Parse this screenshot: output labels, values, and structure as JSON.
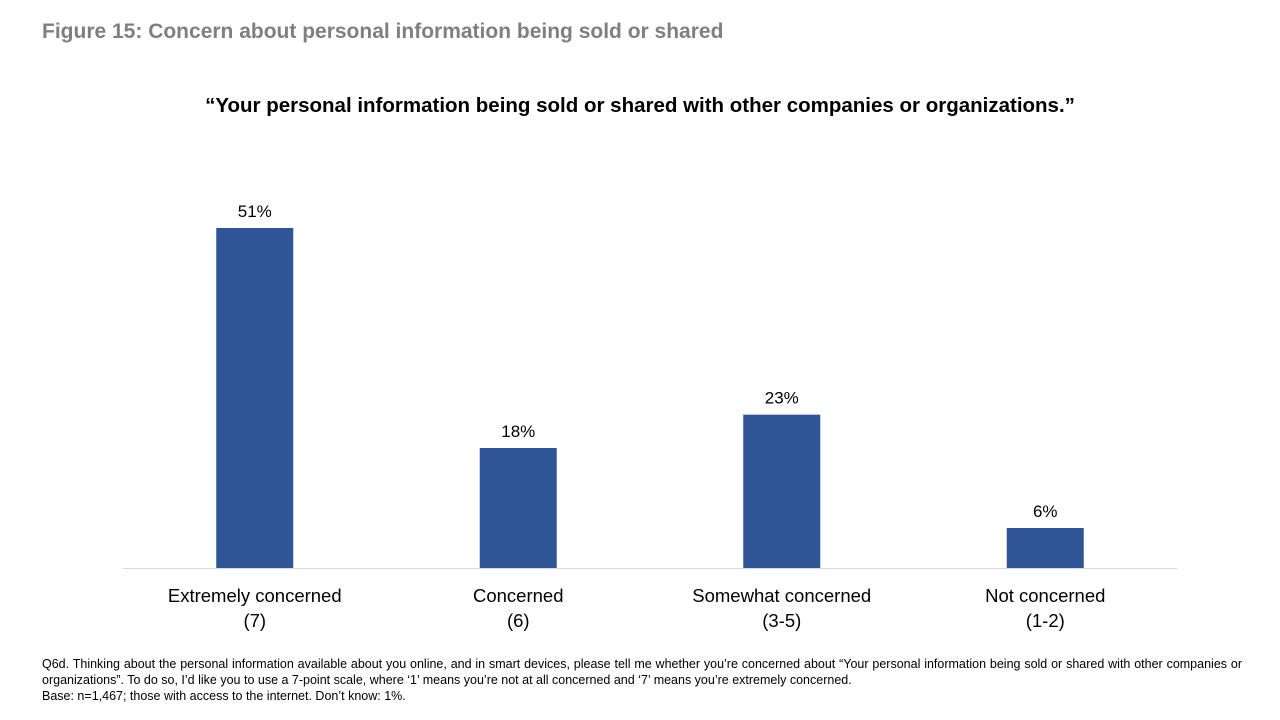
{
  "figure_title": "Figure 15: Concern about personal information being sold or shared",
  "chart_data": {
    "type": "bar",
    "title": "“Your personal information being sold or shared with other companies or organizations.”",
    "categories": [
      [
        "Extremely concerned",
        "(7)"
      ],
      [
        "Concerned",
        "(6)"
      ],
      [
        "Somewhat concerned",
        "(3-5)"
      ],
      [
        "Not concerned",
        "(1-2)"
      ]
    ],
    "values": [
      51,
      18,
      23,
      6
    ],
    "data_labels": [
      "51%",
      "18%",
      "23%",
      "6%"
    ],
    "unit": "%",
    "bar_color": "#2F5597",
    "ylim": [
      0,
      60
    ],
    "grid": false,
    "legend": "none"
  },
  "footnote": {
    "question": "Q6d. Thinking about the personal information available about you online, and in smart devices, please tell me whether you’re concerned about “Your personal information being sold or shared with other companies or organizations”. To do so, I’d like you to use a 7-point scale, where ‘1’ means you’re not at all concerned and ‘7’ means you’re extremely concerned.",
    "base": "Base: n=1,467; those with access to the internet. Don’t know: 1%."
  }
}
